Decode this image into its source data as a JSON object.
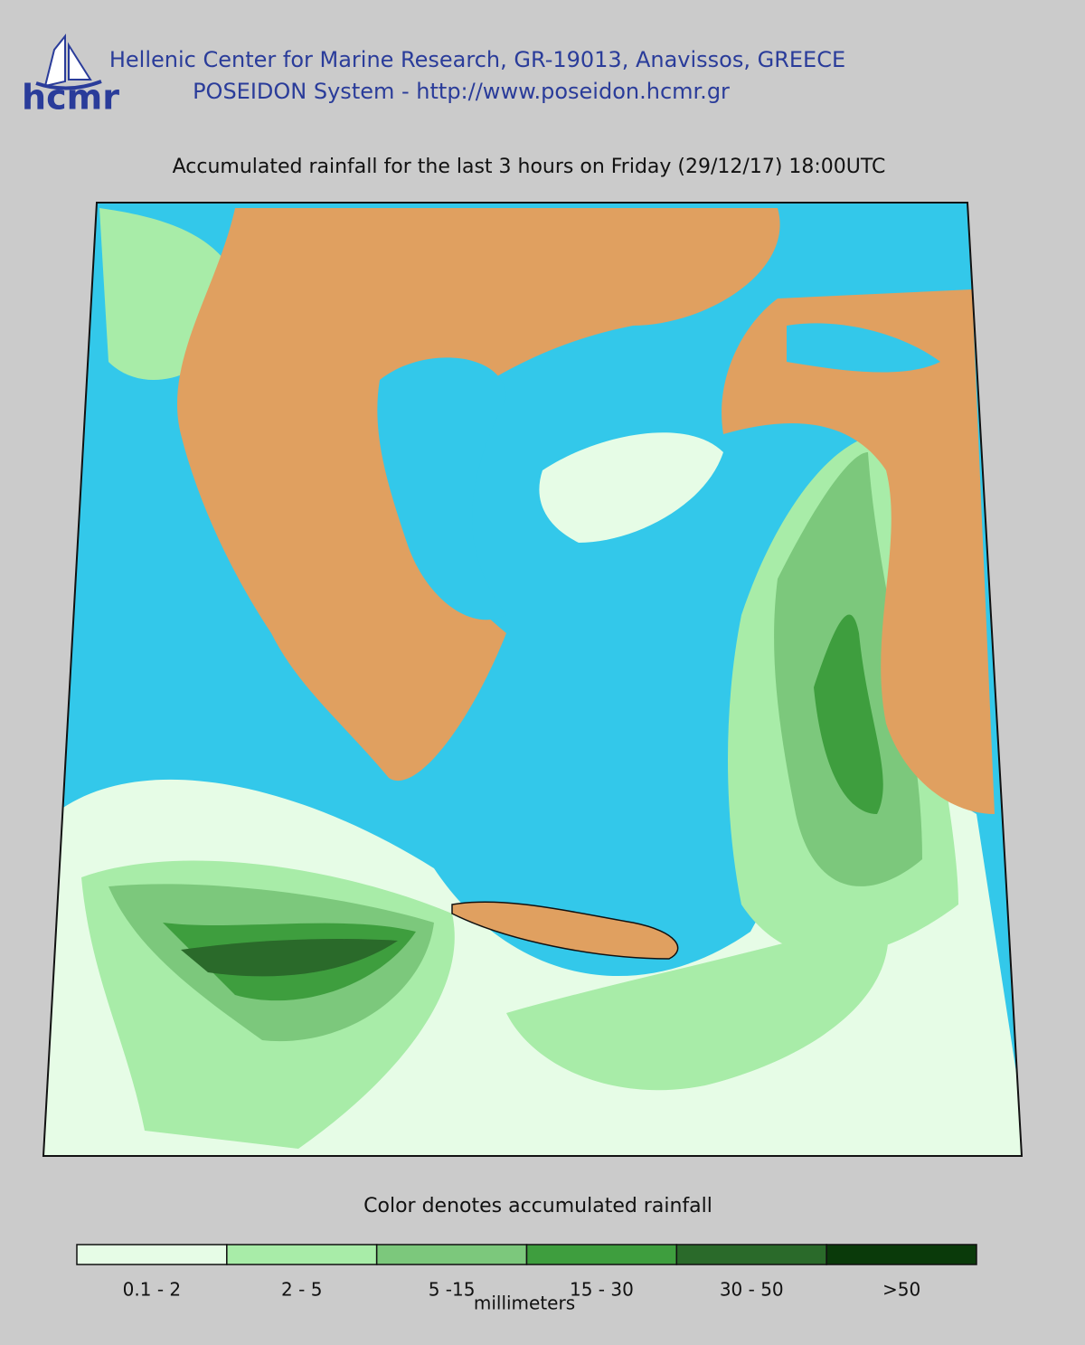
{
  "header": {
    "logo_text": "hcmr",
    "line1": "Hellenic Center for Marine Research, GR-19013, Anavissos, GREECE",
    "line2": "POSEIDON System - http://www.poseidon.hcmr.gr"
  },
  "title": "Accumulated rainfall for the last 3 hours on Friday (29/12/17) 18:00UTC",
  "caption": "Color denotes accumulated rainfall",
  "legend": {
    "unit": "millimeters",
    "items": [
      {
        "label": "0.1 - 2",
        "color": "#e6fce6"
      },
      {
        "label": "2 - 5",
        "color": "#a8eca8"
      },
      {
        "label": "5 -15",
        "color": "#7cc87c"
      },
      {
        "label": "15 - 30",
        "color": "#3e9e3e"
      },
      {
        "label": "30 - 50",
        "color": "#2a6a2a"
      },
      {
        "label": ">50",
        "color": "#0a3a0a"
      }
    ]
  }
}
